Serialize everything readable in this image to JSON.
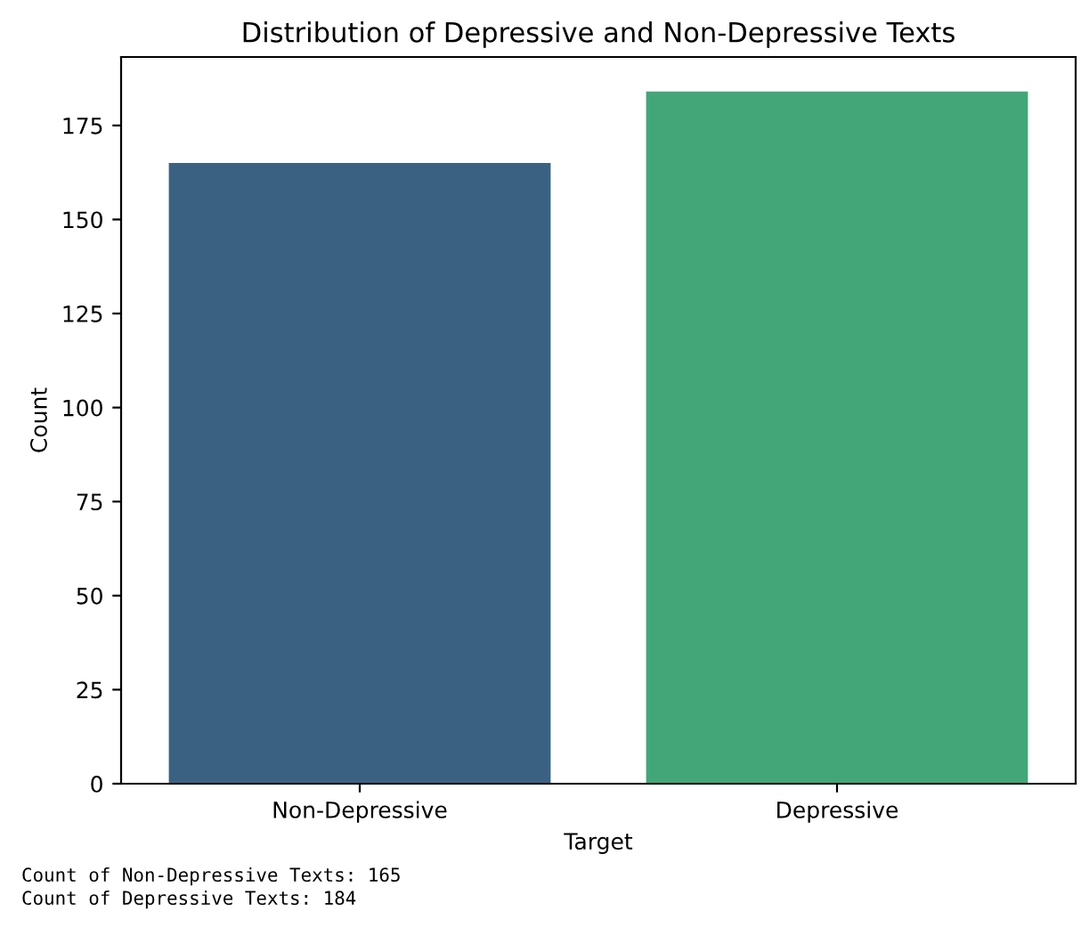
{
  "chart_data": {
    "type": "bar",
    "title": "Distribution of Depressive and Non-Depressive Texts",
    "xlabel": "Target",
    "ylabel": "Count",
    "categories": [
      "Non-Depressive",
      "Depressive"
    ],
    "values": [
      165,
      184
    ],
    "colors": [
      "#3b6182",
      "#42a678"
    ],
    "ylim": [
      0,
      193.2
    ],
    "yticks": [
      0,
      25,
      50,
      75,
      100,
      125,
      150,
      175
    ],
    "annotations": [
      "Count of Non-Depressive Texts: 165",
      "Count of Depressive Texts: 184"
    ]
  }
}
